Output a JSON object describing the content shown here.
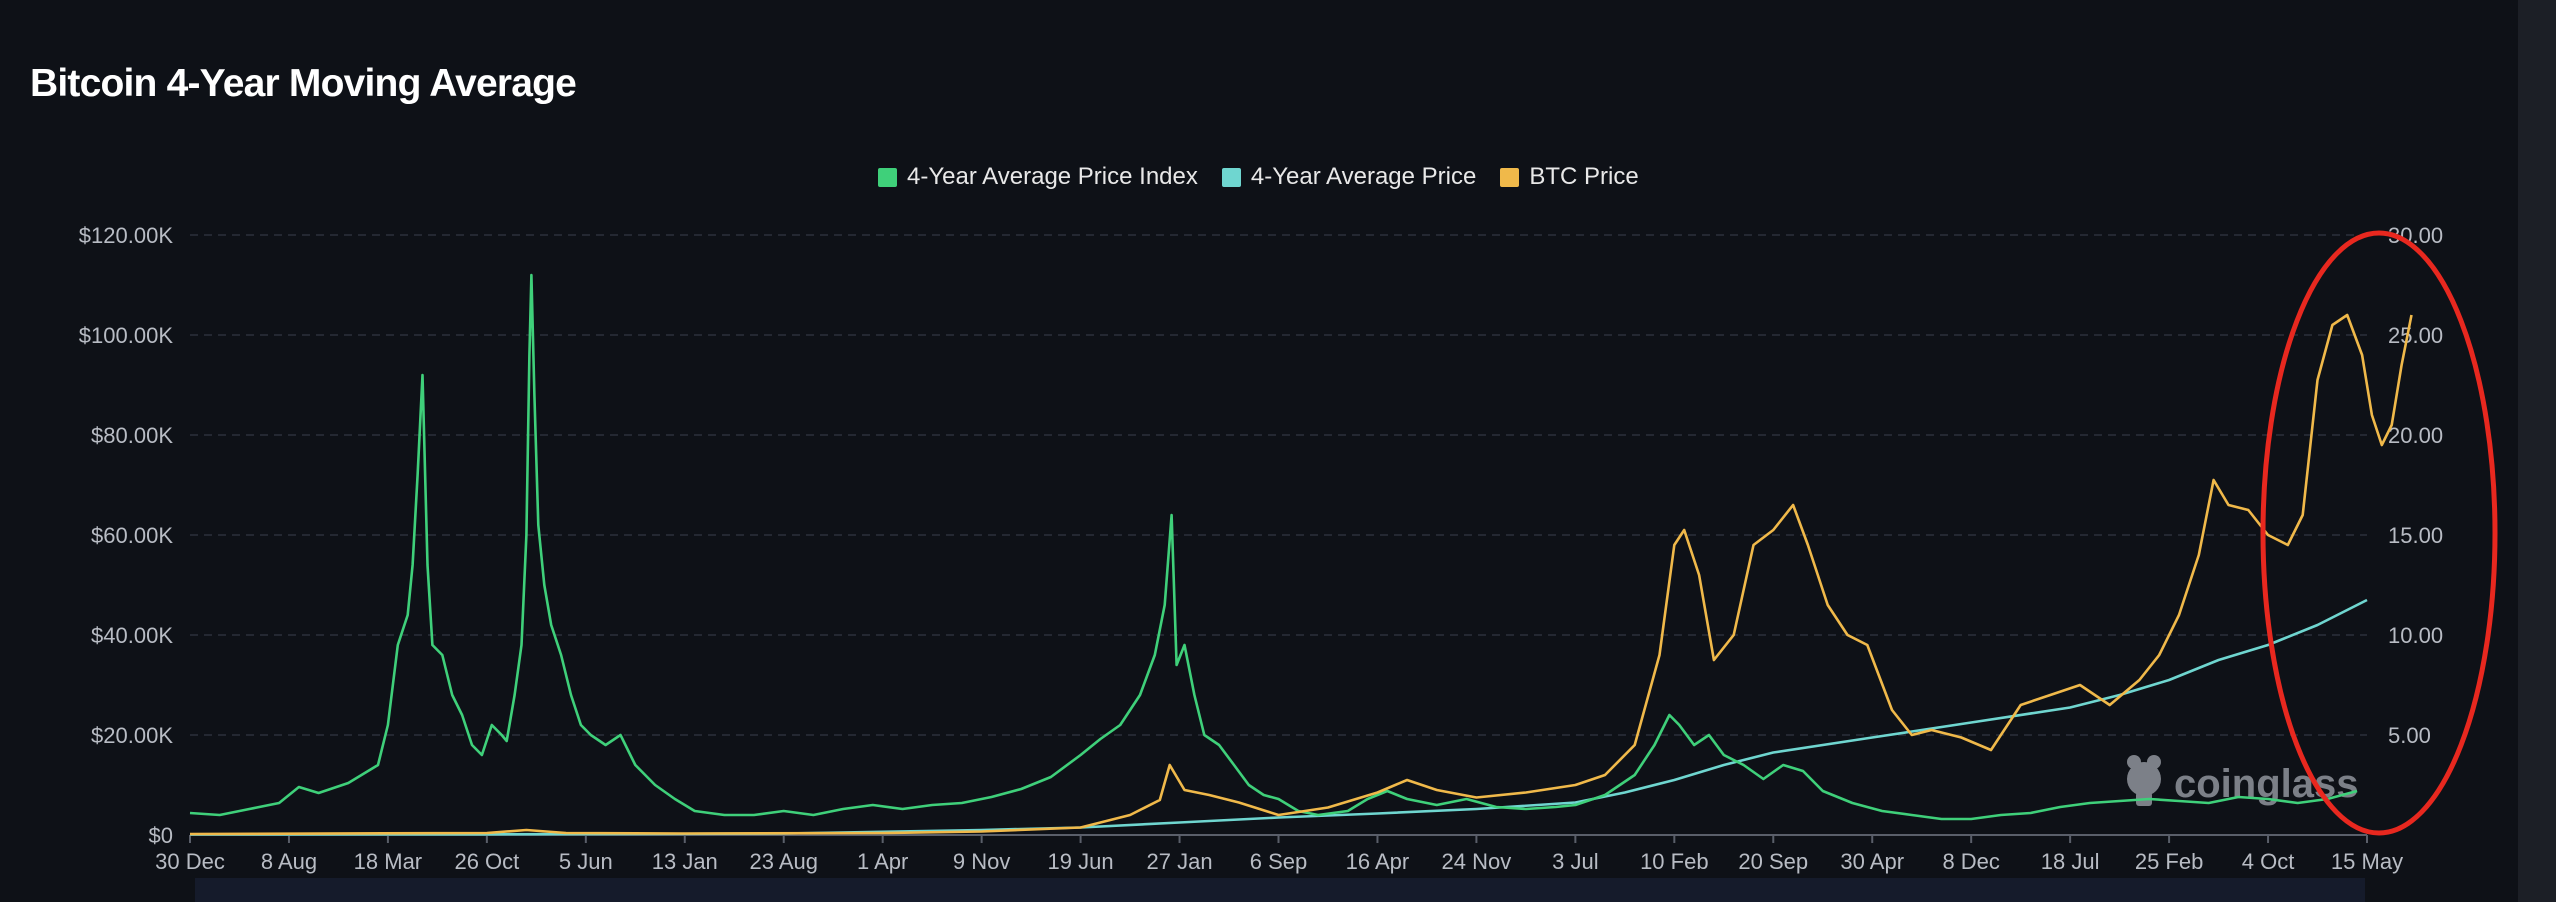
{
  "header": {
    "title": "Bitcoin 4-Year Moving Average"
  },
  "watermark": "coinglass",
  "colors": {
    "index": "#3fd07a",
    "avg": "#6fd6d0",
    "btc": "#f0b94a",
    "annotation": "#e8281f"
  },
  "chart_data": {
    "type": "line",
    "title": "Bitcoin 4-Year Moving Average",
    "legend": [
      "4-Year Average Price Index",
      "4-Year Average Price",
      "BTC Price"
    ],
    "legend_placement": "top-center",
    "grid": true,
    "x_ticks": [
      "30 Dec",
      "8 Aug",
      "18 Mar",
      "26 Oct",
      "5 Jun",
      "13 Jan",
      "23 Aug",
      "1 Apr",
      "9 Nov",
      "19 Jun",
      "27 Jan",
      "6 Sep",
      "16 Apr",
      "24 Nov",
      "3 Jul",
      "10 Feb",
      "20 Sep",
      "30 Apr",
      "8 Dec",
      "18 Jul",
      "25 Feb",
      "4 Oct",
      "15 May"
    ],
    "y_left_ticks": [
      "$0",
      "$20.00K",
      "$40.00K",
      "$60.00K",
      "$80.00K",
      "$100.00K",
      "$120.00K"
    ],
    "y_right_ticks": [
      "5.00",
      "10.00",
      "15.00",
      "20.00",
      "25.00",
      "30.00"
    ],
    "y_left_range": [
      0,
      120000
    ],
    "y_right_range": [
      0,
      30
    ],
    "x_range": [
      0,
      22
    ],
    "series": [
      {
        "name": "4-Year Average Price Index",
        "axis": "right",
        "points": [
          [
            0,
            1.1
          ],
          [
            0.3,
            1.0
          ],
          [
            0.6,
            1.3
          ],
          [
            0.9,
            1.6
          ],
          [
            1.1,
            2.4
          ],
          [
            1.3,
            2.1
          ],
          [
            1.6,
            2.6
          ],
          [
            1.9,
            3.5
          ],
          [
            2.0,
            5.5
          ],
          [
            2.1,
            9.5
          ],
          [
            2.2,
            11.0
          ],
          [
            2.25,
            13.5
          ],
          [
            2.3,
            18.0
          ],
          [
            2.35,
            23.0
          ],
          [
            2.4,
            13.5
          ],
          [
            2.45,
            9.5
          ],
          [
            2.55,
            9.0
          ],
          [
            2.65,
            7.0
          ],
          [
            2.75,
            6.0
          ],
          [
            2.85,
            4.5
          ],
          [
            2.95,
            4.0
          ],
          [
            3.05,
            5.5
          ],
          [
            3.15,
            5.0
          ],
          [
            3.2,
            4.7
          ],
          [
            3.28,
            7.0
          ],
          [
            3.35,
            9.5
          ],
          [
            3.4,
            15.0
          ],
          [
            3.43,
            24.0
          ],
          [
            3.45,
            28.0
          ],
          [
            3.48,
            22.0
          ],
          [
            3.52,
            15.5
          ],
          [
            3.58,
            12.5
          ],
          [
            3.65,
            10.5
          ],
          [
            3.75,
            9.0
          ],
          [
            3.85,
            7.0
          ],
          [
            3.95,
            5.5
          ],
          [
            4.05,
            5.0
          ],
          [
            4.2,
            4.5
          ],
          [
            4.35,
            5.0
          ],
          [
            4.5,
            3.5
          ],
          [
            4.7,
            2.5
          ],
          [
            4.9,
            1.8
          ],
          [
            5.1,
            1.2
          ],
          [
            5.4,
            1.0
          ],
          [
            5.7,
            1.0
          ],
          [
            6.0,
            1.2
          ],
          [
            6.3,
            1.0
          ],
          [
            6.6,
            1.3
          ],
          [
            6.9,
            1.5
          ],
          [
            7.2,
            1.3
          ],
          [
            7.5,
            1.5
          ],
          [
            7.8,
            1.6
          ],
          [
            8.1,
            1.9
          ],
          [
            8.4,
            2.3
          ],
          [
            8.7,
            2.9
          ],
          [
            9.0,
            4.0
          ],
          [
            9.2,
            4.8
          ],
          [
            9.4,
            5.5
          ],
          [
            9.6,
            7.0
          ],
          [
            9.75,
            9.0
          ],
          [
            9.85,
            11.5
          ],
          [
            9.92,
            16.0
          ],
          [
            9.97,
            8.5
          ],
          [
            10.05,
            9.5
          ],
          [
            10.15,
            7.0
          ],
          [
            10.25,
            5.0
          ],
          [
            10.4,
            4.5
          ],
          [
            10.55,
            3.5
          ],
          [
            10.7,
            2.5
          ],
          [
            10.85,
            2.0
          ],
          [
            11.0,
            1.8
          ],
          [
            11.2,
            1.2
          ],
          [
            11.4,
            1.0
          ],
          [
            11.7,
            1.2
          ],
          [
            11.9,
            1.8
          ],
          [
            12.1,
            2.2
          ],
          [
            12.3,
            1.8
          ],
          [
            12.6,
            1.5
          ],
          [
            12.9,
            1.8
          ],
          [
            13.2,
            1.4
          ],
          [
            13.5,
            1.3
          ],
          [
            13.8,
            1.4
          ],
          [
            14.0,
            1.5
          ],
          [
            14.3,
            2.0
          ],
          [
            14.6,
            3.0
          ],
          [
            14.8,
            4.5
          ],
          [
            14.95,
            6.0
          ],
          [
            15.05,
            5.5
          ],
          [
            15.2,
            4.5
          ],
          [
            15.35,
            5.0
          ],
          [
            15.5,
            4.0
          ],
          [
            15.7,
            3.5
          ],
          [
            15.9,
            2.8
          ],
          [
            16.1,
            3.5
          ],
          [
            16.3,
            3.2
          ],
          [
            16.5,
            2.2
          ],
          [
            16.8,
            1.6
          ],
          [
            17.1,
            1.2
          ],
          [
            17.4,
            1.0
          ],
          [
            17.7,
            0.8
          ],
          [
            18.0,
            0.8
          ],
          [
            18.3,
            1.0
          ],
          [
            18.6,
            1.1
          ],
          [
            18.9,
            1.4
          ],
          [
            19.2,
            1.6
          ],
          [
            19.5,
            1.7
          ],
          [
            19.8,
            1.8
          ],
          [
            20.1,
            1.7
          ],
          [
            20.4,
            1.6
          ],
          [
            20.7,
            1.9
          ],
          [
            21.0,
            1.8
          ],
          [
            21.3,
            1.6
          ],
          [
            21.6,
            1.8
          ],
          [
            21.9,
            2.2
          ]
        ]
      },
      {
        "name": "4-Year Average Price",
        "axis": "left",
        "points": [
          [
            0,
            100
          ],
          [
            3,
            150
          ],
          [
            6,
            300
          ],
          [
            8,
            1000
          ],
          [
            9,
            1500
          ],
          [
            10,
            2500
          ],
          [
            11,
            3500
          ],
          [
            12,
            4300
          ],
          [
            13,
            5200
          ],
          [
            14,
            6500
          ],
          [
            14.5,
            8500
          ],
          [
            15,
            11000
          ],
          [
            15.5,
            14000
          ],
          [
            16,
            16500
          ],
          [
            17,
            19500
          ],
          [
            18,
            22500
          ],
          [
            19,
            25500
          ],
          [
            19.5,
            28000
          ],
          [
            20,
            31000
          ],
          [
            20.5,
            35000
          ],
          [
            21,
            38000
          ],
          [
            21.5,
            42000
          ],
          [
            22,
            47000
          ]
        ]
      },
      {
        "name": "BTC Price",
        "axis": "left",
        "points": [
          [
            0,
            200
          ],
          [
            3,
            400
          ],
          [
            3.4,
            1000
          ],
          [
            3.8,
            400
          ],
          [
            5,
            300
          ],
          [
            7,
            400
          ],
          [
            8,
            700
          ],
          [
            9,
            1500
          ],
          [
            9.5,
            4000
          ],
          [
            9.8,
            7000
          ],
          [
            9.9,
            14000
          ],
          [
            10.05,
            9000
          ],
          [
            10.3,
            8000
          ],
          [
            10.6,
            6500
          ],
          [
            11,
            4000
          ],
          [
            11.5,
            5500
          ],
          [
            12,
            8500
          ],
          [
            12.3,
            11000
          ],
          [
            12.6,
            9000
          ],
          [
            13,
            7500
          ],
          [
            13.5,
            8500
          ],
          [
            14,
            10000
          ],
          [
            14.3,
            12000
          ],
          [
            14.6,
            18000
          ],
          [
            14.85,
            36000
          ],
          [
            15.0,
            58000
          ],
          [
            15.1,
            61000
          ],
          [
            15.25,
            52000
          ],
          [
            15.4,
            35000
          ],
          [
            15.6,
            40000
          ],
          [
            15.8,
            58000
          ],
          [
            16.0,
            61000
          ],
          [
            16.2,
            66000
          ],
          [
            16.35,
            58000
          ],
          [
            16.55,
            46000
          ],
          [
            16.75,
            40000
          ],
          [
            16.95,
            38000
          ],
          [
            17.2,
            25000
          ],
          [
            17.4,
            20000
          ],
          [
            17.6,
            21000
          ],
          [
            17.9,
            19500
          ],
          [
            18.2,
            17000
          ],
          [
            18.5,
            26000
          ],
          [
            18.8,
            28000
          ],
          [
            19.1,
            30000
          ],
          [
            19.4,
            26000
          ],
          [
            19.7,
            31000
          ],
          [
            19.9,
            36000
          ],
          [
            20.1,
            44000
          ],
          [
            20.3,
            56000
          ],
          [
            20.45,
            71000
          ],
          [
            20.6,
            66000
          ],
          [
            20.8,
            65000
          ],
          [
            21.0,
            60000
          ],
          [
            21.2,
            58000
          ],
          [
            21.35,
            64000
          ],
          [
            21.5,
            91000
          ],
          [
            21.65,
            102000
          ],
          [
            21.8,
            104000
          ],
          [
            21.95,
            96000
          ],
          [
            22.05,
            84000
          ],
          [
            22.15,
            78000
          ],
          [
            22.25,
            82000
          ],
          [
            22.35,
            94000
          ],
          [
            22.45,
            104000
          ]
        ]
      }
    ]
  }
}
